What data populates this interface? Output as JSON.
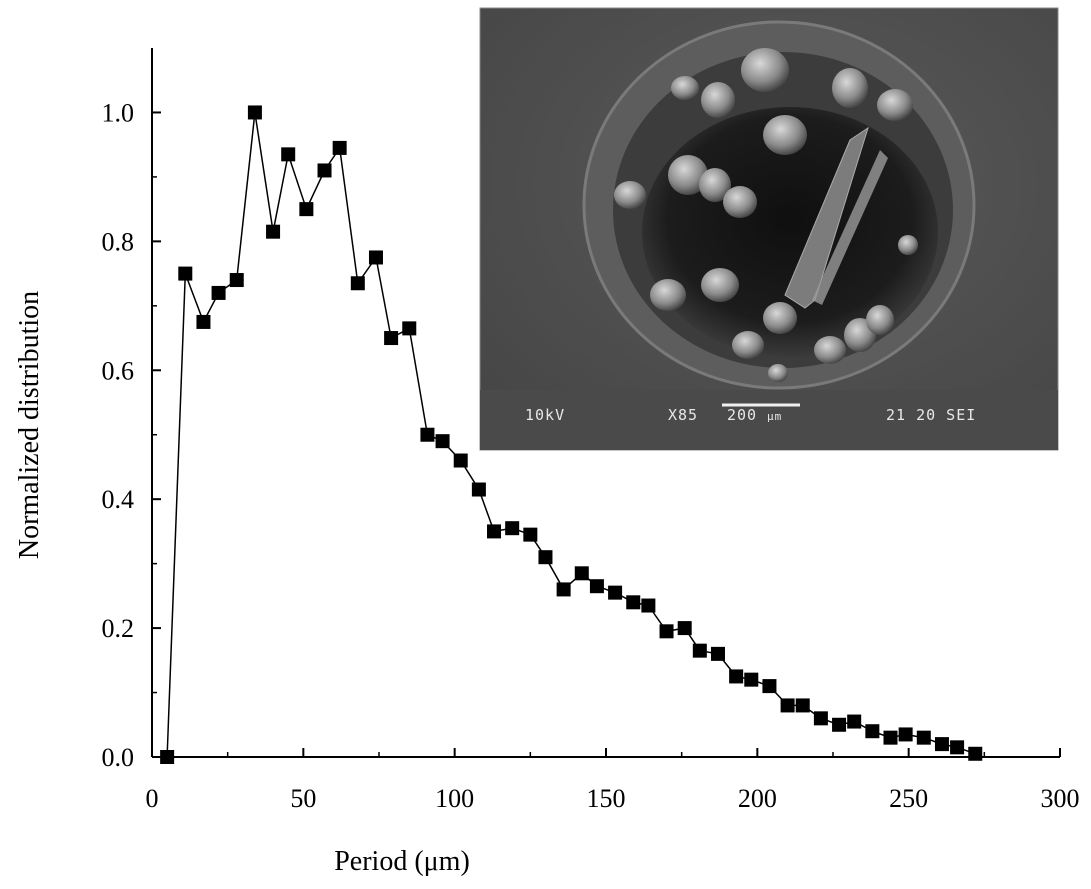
{
  "chart_data": {
    "type": "line",
    "title": "",
    "xlabel": "Period (μm)",
    "ylabel": "Normalized distribution",
    "xlim": [
      0,
      300
    ],
    "ylim": [
      0,
      1.1
    ],
    "xticks": [
      0,
      50,
      100,
      150,
      200,
      250,
      300
    ],
    "yticks": [
      0.0,
      0.2,
      0.4,
      0.6,
      0.8,
      1.0
    ],
    "xtick_labels": [
      "0",
      "50",
      "100",
      "150",
      "200",
      "250",
      "300"
    ],
    "ytick_labels": [
      "0.0",
      "0.2",
      "0.4",
      "0.6",
      "0.8",
      "1.0"
    ],
    "grid": false,
    "legend": "none",
    "marker": "filled-square",
    "series": [
      {
        "x": [
          5,
          11,
          17,
          22,
          28,
          34,
          40,
          45,
          51,
          57,
          62,
          68,
          74,
          79,
          85,
          91,
          96,
          102,
          108,
          113,
          119,
          125,
          130,
          136,
          142,
          147,
          153,
          159,
          164,
          170,
          176,
          181,
          187,
          193,
          198,
          204,
          210,
          215,
          221,
          227,
          232,
          238,
          244,
          249,
          255,
          261,
          266,
          272
        ],
        "values": [
          0.0,
          0.75,
          0.675,
          0.72,
          0.74,
          1.0,
          0.815,
          0.935,
          0.85,
          0.91,
          0.945,
          0.735,
          0.775,
          0.65,
          0.665,
          0.5,
          0.49,
          0.46,
          0.415,
          0.35,
          0.355,
          0.345,
          0.31,
          0.26,
          0.285,
          0.265,
          0.255,
          0.24,
          0.235,
          0.195,
          0.2,
          0.165,
          0.16,
          0.125,
          0.12,
          0.11,
          0.08,
          0.08,
          0.06,
          0.05,
          0.055,
          0.04,
          0.03,
          0.035,
          0.03,
          0.02,
          0.015,
          0.005
        ]
      }
    ],
    "colors": {
      "line": "#000000",
      "marker": "#000000"
    }
  },
  "inset": {
    "description_label": "SEM micrograph",
    "voltage": "10kV",
    "magnification": "X85",
    "scale_bar": "200",
    "scale_unit": "μm",
    "info": "21 20 SEI"
  }
}
